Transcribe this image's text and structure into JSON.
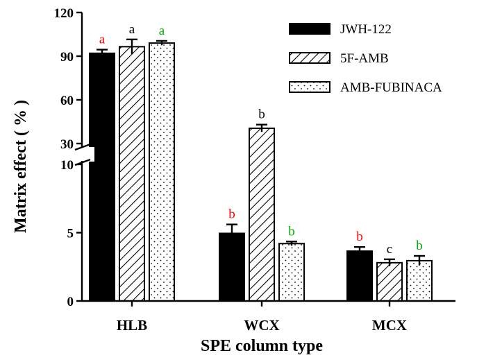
{
  "chart_data": {
    "type": "bar",
    "xlabel": "SPE column type",
    "ylabel": "Matrix effect ( % )",
    "categories": [
      "HLB",
      "WCX",
      "MCX"
    ],
    "broken_axis": {
      "lower_range": [
        0,
        10
      ],
      "upper_range": [
        30,
        120
      ],
      "lower_ticks": [
        "0",
        "5",
        "10"
      ],
      "upper_ticks": [
        "30",
        "60",
        "90",
        "120"
      ]
    },
    "series": [
      {
        "name": "JWH-122",
        "pattern": "solid",
        "values": [
          92,
          4.95,
          3.65
        ],
        "errors": [
          2.5,
          0.65,
          0.3
        ],
        "labels": [
          "a",
          "b",
          "b"
        ],
        "label_colors": [
          "#ff0000",
          "#ff0000",
          "#ff0000"
        ]
      },
      {
        "name": "5F-AMB",
        "pattern": "hatch",
        "values": [
          96.5,
          40.5,
          2.8
        ],
        "errors": [
          5,
          2.5,
          0.25
        ],
        "labels": [
          "a",
          "b",
          "c"
        ],
        "label_colors": [
          "#000000",
          "#000000",
          "#000000"
        ]
      },
      {
        "name": "AMB-FUBINACA",
        "pattern": "dots",
        "values": [
          99,
          4.2,
          2.95
        ],
        "errors": [
          1.5,
          0.15,
          0.35
        ],
        "labels": [
          "a",
          "b",
          "b"
        ],
        "label_colors": [
          "#00aa00",
          "#00aa00",
          "#00aa00"
        ]
      }
    ],
    "grid": false,
    "legend_position": "top-right"
  }
}
